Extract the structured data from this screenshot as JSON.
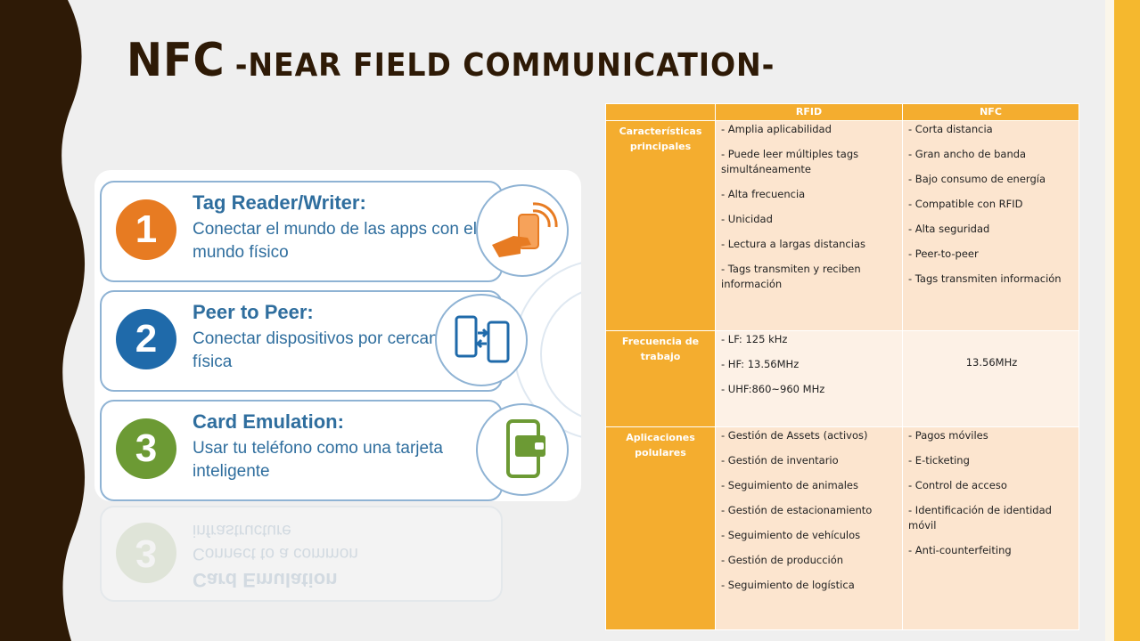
{
  "title": {
    "main": "NFC",
    "sub": "-NEAR FIELD COMMUNICATION-"
  },
  "colors": {
    "accent": "#f5b82e",
    "dark_band": "#2e1a06",
    "title": "#2e1a06",
    "card_blue": "#2f6e9e"
  },
  "cards": [
    {
      "number": "1",
      "title": "Tag Reader/Writer:",
      "desc": "Conectar el mundo de las apps con el mundo físico",
      "circle_color": "#e77b22",
      "icon": "hand-phone-icon"
    },
    {
      "number": "2",
      "title": "Peer to Peer:",
      "desc": "Conectar dispositivos por cercanía física",
      "circle_color": "#1f6aaa",
      "icon": "phones-exchange-icon"
    },
    {
      "number": "3",
      "title": "Card Emulation:",
      "desc": "Usar tu teléfono como una tarjeta inteligente",
      "circle_color": "#6c9a34",
      "icon": "wallet-phone-icon"
    }
  ],
  "reflection": {
    "title": "Card Emulation",
    "line1": "Connect to a common",
    "line2": "infrastructure"
  },
  "table": {
    "headers": [
      "",
      "RFID",
      "NFC"
    ],
    "rows": [
      {
        "label": "Características principales",
        "rfid": [
          "- Amplia aplicabilidad",
          "- Puede leer múltiples tags simultáneamente",
          "- Alta frecuencia",
          "- Unicidad",
          "- Lectura a largas distancias",
          "- Tags transmiten y reciben información"
        ],
        "nfc": [
          "- Corta distancia",
          "- Gran ancho de banda",
          "- Bajo consumo de energía",
          "- Compatible con RFID",
          "- Alta seguridad",
          "- Peer-to-peer",
          "- Tags transmiten información"
        ]
      },
      {
        "label": "Frecuencia de trabajo",
        "rfid": [
          "- LF: 125 kHz",
          "- HF: 13.56MHz",
          "- UHF:860~960 MHz"
        ],
        "nfc_text": "13.56MHz"
      },
      {
        "label": "Aplicaciones polulares",
        "rfid": [
          "- Gestión de Assets (activos)",
          "- Gestión de inventario",
          "- Seguimiento de animales",
          "- Gestión de estacionamiento",
          "- Seguimiento de vehículos",
          "- Gestión de producción",
          "- Seguimiento de logística"
        ],
        "nfc": [
          "- Pagos móviles",
          "- E-ticketing",
          "- Control de acceso",
          "- Identificación de identidad móvil",
          "- Anti-counterfeiting"
        ]
      }
    ]
  }
}
